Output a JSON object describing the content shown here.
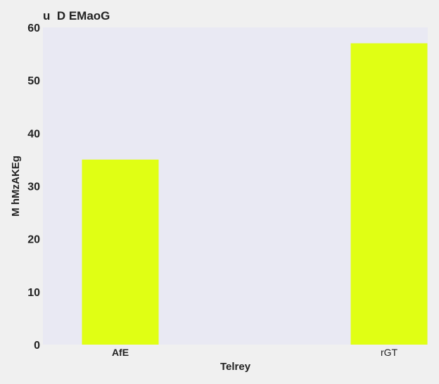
{
  "chart_data": {
    "type": "bar",
    "title": "u  D EMaoG",
    "xlabel": "Telrey",
    "ylabel": "M hMzAKEg",
    "categories": [
      "AfE",
      "rGT"
    ],
    "category_bold": [
      true,
      false
    ],
    "values": [
      35,
      57
    ],
    "ylim": [
      0,
      60
    ],
    "yticks": [
      0,
      10,
      20,
      30,
      40,
      50,
      60
    ],
    "grid": false,
    "colors": {
      "bar": "#e0ff14",
      "plot_background": "#e9e9f3",
      "page_background": "#f0f0f0",
      "text": "#222222"
    }
  }
}
